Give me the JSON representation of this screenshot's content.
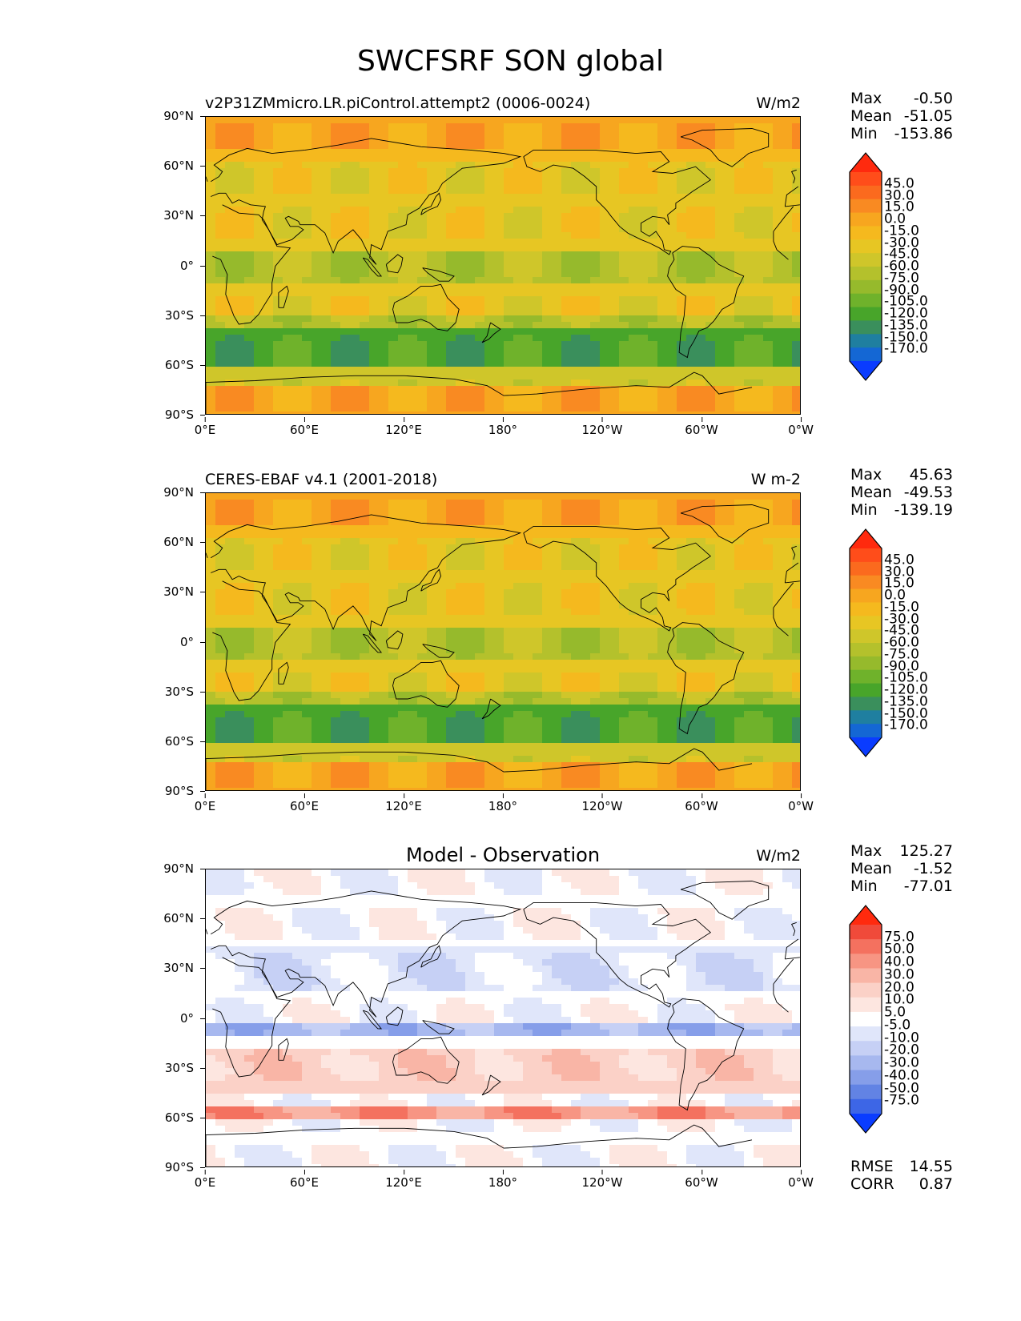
{
  "figure": {
    "title": "SWCFSRF SON global"
  },
  "axes": {
    "y_ticks": [
      "90°N",
      "60°N",
      "30°N",
      "0°",
      "30°S",
      "60°S",
      "90°S"
    ],
    "x_ticks": [
      "0°E",
      "60°E",
      "120°E",
      "180°",
      "120°W",
      "60°W",
      "0°W"
    ]
  },
  "panels": [
    {
      "left_title": "v2P31ZMmicro.LR.piControl.attempt2 (0006-0024)",
      "center_title": "",
      "units": "W/m2",
      "stats": [
        {
          "label": "Max",
          "value": "-0.50"
        },
        {
          "label": "Mean",
          "value": "-51.05"
        },
        {
          "label": "Min",
          "value": "-153.86"
        }
      ],
      "colorbar": {
        "labels": [
          "45.0",
          "30.0",
          "15.0",
          "0.0",
          "-15.0",
          "-30.0",
          "-45.0",
          "-60.0",
          "-75.0",
          "-90.0",
          "-105.0",
          "-120.0",
          "-135.0",
          "-150.0",
          "-170.0"
        ],
        "colors": [
          "#ff2a0e",
          "#ff4d1a",
          "#fb6a1e",
          "#f98a22",
          "#f7a61f",
          "#f5b91e",
          "#e7c623",
          "#cfc62a",
          "#b4c12c",
          "#96ba2c",
          "#6fb22b",
          "#48a52a",
          "#3a8f5c",
          "#1f7fa0",
          "#1467d4",
          "#0a3cff"
        ]
      },
      "summary": [],
      "map_type": "absolute"
    },
    {
      "left_title": "CERES-EBAF v4.1 (2001-2018)",
      "center_title": "",
      "units": "W m-2",
      "stats": [
        {
          "label": "Max",
          "value": "45.63"
        },
        {
          "label": "Mean",
          "value": "-49.53"
        },
        {
          "label": "Min",
          "value": "-139.19"
        }
      ],
      "colorbar": {
        "labels": [
          "45.0",
          "30.0",
          "15.0",
          "0.0",
          "-15.0",
          "-30.0",
          "-45.0",
          "-60.0",
          "-75.0",
          "-90.0",
          "-105.0",
          "-120.0",
          "-135.0",
          "-150.0",
          "-170.0"
        ],
        "colors": [
          "#ff2a0e",
          "#ff4d1a",
          "#fb6a1e",
          "#f98a22",
          "#f7a61f",
          "#f5b91e",
          "#e7c623",
          "#cfc62a",
          "#b4c12c",
          "#96ba2c",
          "#6fb22b",
          "#48a52a",
          "#3a8f5c",
          "#1f7fa0",
          "#1467d4",
          "#0a3cff"
        ]
      },
      "summary": [],
      "map_type": "absolute"
    },
    {
      "left_title": "",
      "center_title": "Model - Observation",
      "units": "W/m2",
      "stats": [
        {
          "label": "Max",
          "value": "125.27"
        },
        {
          "label": "Mean",
          "value": "-1.52"
        },
        {
          "label": "Min",
          "value": "-77.01"
        }
      ],
      "colorbar": {
        "labels": [
          "75.0",
          "50.0",
          "40.0",
          "30.0",
          "20.0",
          "10.0",
          "5.0",
          "-5.0",
          "-10.0",
          "-20.0",
          "-30.0",
          "-40.0",
          "-50.0",
          "-75.0"
        ],
        "colors": [
          "#ff2a0e",
          "#f04a3a",
          "#f4715f",
          "#f79583",
          "#f9b5a6",
          "#fbd1c7",
          "#fde6e0",
          "#ffffff",
          "#e0e6fa",
          "#c6d0f5",
          "#a7b8ef",
          "#869ee9",
          "#6283e4",
          "#3d66e6",
          "#0a3cff"
        ]
      },
      "summary": [
        {
          "label": "RMSE",
          "value": "14.55"
        },
        {
          "label": "CORR",
          "value": "0.87"
        }
      ],
      "map_type": "difference"
    }
  ]
}
